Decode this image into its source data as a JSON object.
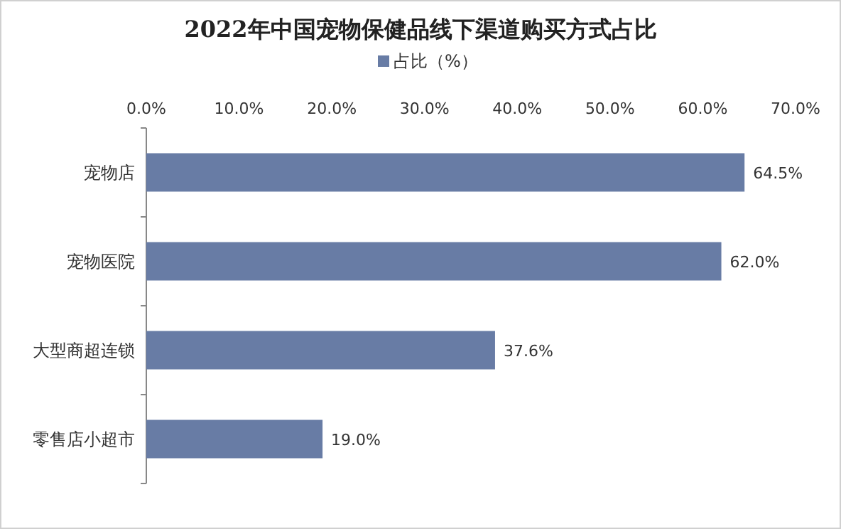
{
  "chart_data": {
    "type": "bar",
    "orientation": "horizontal",
    "title": "2022年中国宠物保健品线下渠道购买方式占比",
    "categories": [
      "宠物店",
      "宠物医院",
      "大型商超连锁",
      "零售店小超市"
    ],
    "series": [
      {
        "name": "占比（%）",
        "color": "#687ca5",
        "values": [
          64.5,
          62.0,
          37.6,
          19.0
        ],
        "value_labels": [
          "64.5%",
          "62.0%",
          "37.6%",
          "19.0%"
        ]
      }
    ],
    "xlim": [
      0,
      70
    ],
    "xticks": [
      {
        "value": 0,
        "label": "0.0%"
      },
      {
        "value": 10,
        "label": "10.0%"
      },
      {
        "value": 20,
        "label": "20.0%"
      },
      {
        "value": 30,
        "label": "30.0%"
      },
      {
        "value": 40,
        "label": "40.0%"
      },
      {
        "value": 50,
        "label": "50.0%"
      },
      {
        "value": 60,
        "label": "60.0%"
      },
      {
        "value": 70,
        "label": "70.0%"
      }
    ],
    "legend": "top",
    "grid": false
  }
}
